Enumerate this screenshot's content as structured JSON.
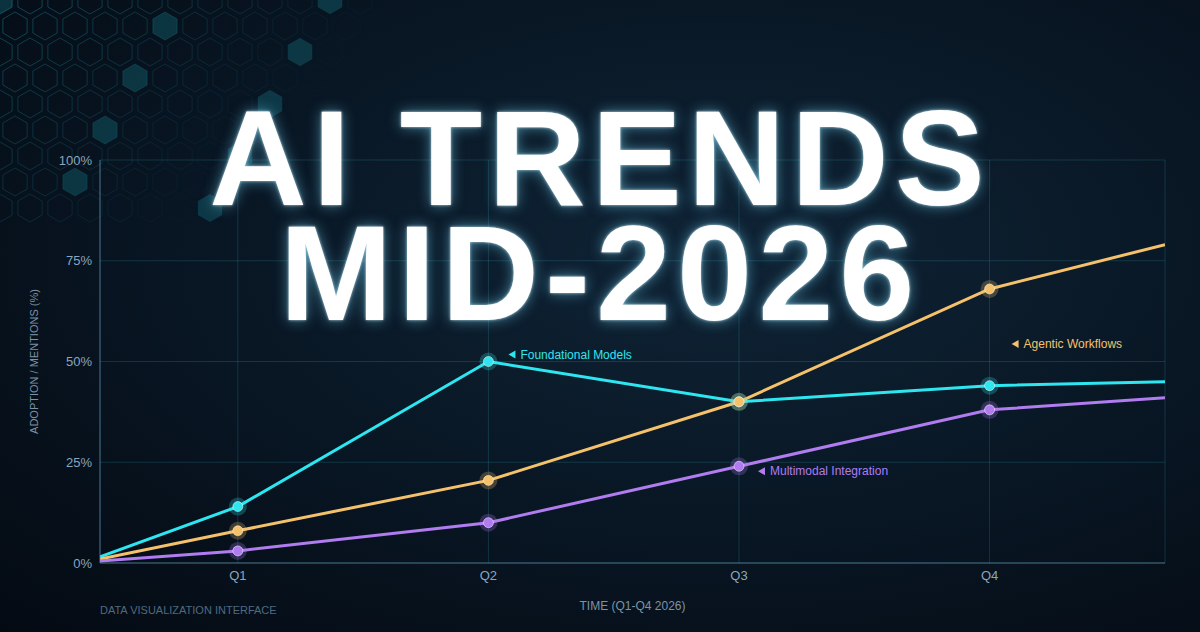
{
  "chart_data": {
    "type": "line",
    "title": "AI TRENDS MID-2026",
    "xlabel": "TIME (Q1-Q4 2026)",
    "ylabel": "ADOPTION / MENTIONS (%)",
    "annotations": [
      "DATA VISUALIZATION INTERFACE"
    ],
    "x": [
      0.45,
      1,
      2,
      3,
      4,
      4.7
    ],
    "xlim": [
      0.45,
      4.7
    ],
    "xticks": [
      {
        "value": 1,
        "label": "Q1"
      },
      {
        "value": 2,
        "label": "Q2"
      },
      {
        "value": 3,
        "label": "Q3"
      },
      {
        "value": 4,
        "label": "Q4"
      }
    ],
    "ylim": [
      0,
      100
    ],
    "yticks": [
      {
        "value": 0,
        "label": "0%"
      },
      {
        "value": 25,
        "label": "25%"
      },
      {
        "value": 50,
        "label": "50%"
      },
      {
        "value": 75,
        "label": "75%"
      },
      {
        "value": 100,
        "label": "100%"
      }
    ],
    "grid": true,
    "marker": "circle",
    "series": [
      {
        "name": "Foundational Models",
        "color": "#2ee6f0",
        "values": [
          1.5,
          14,
          50,
          40,
          44,
          45
        ]
      },
      {
        "name": "Agentic Workflows",
        "color": "#f5c26b",
        "values": [
          1,
          8,
          20.5,
          40,
          68,
          79
        ]
      },
      {
        "name": "Multimodal Integration",
        "color": "#b07cf0",
        "values": [
          0.5,
          3,
          10,
          24,
          38,
          41
        ]
      }
    ]
  }
}
